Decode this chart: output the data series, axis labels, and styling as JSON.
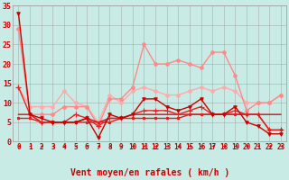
{
  "xlabel": "Vent moyen/en rafales ( km/h )",
  "xlim": [
    -0.5,
    23.5
  ],
  "ylim": [
    0,
    35
  ],
  "yticks": [
    0,
    5,
    10,
    15,
    20,
    25,
    30,
    35
  ],
  "xticks": [
    0,
    1,
    2,
    3,
    4,
    5,
    6,
    7,
    8,
    9,
    10,
    11,
    12,
    13,
    14,
    15,
    16,
    17,
    18,
    19,
    20,
    21,
    22,
    23
  ],
  "bg_color": "#c8ebe6",
  "grid_color": "#999999",
  "lines": [
    {
      "x": [
        0,
        1,
        2,
        3,
        4,
        5,
        6,
        7,
        8,
        9,
        10,
        11,
        12,
        13,
        14,
        15,
        16,
        17,
        18,
        19,
        20,
        21,
        22,
        23
      ],
      "y": [
        33,
        7,
        6,
        5,
        5,
        5,
        6,
        1,
        7,
        6,
        7,
        11,
        11,
        9,
        8,
        9,
        11,
        7,
        7,
        9,
        5,
        4,
        2,
        2
      ],
      "color": "#cc0000",
      "lw": 1.0,
      "marker": "v",
      "ms": 2.5,
      "zorder": 5
    },
    {
      "x": [
        0,
        1,
        2,
        3,
        4,
        5,
        6,
        7,
        8,
        9,
        10,
        11,
        12,
        13,
        14,
        15,
        16,
        17,
        18,
        19,
        20,
        21,
        22,
        23
      ],
      "y": [
        14,
        7,
        5,
        5,
        5,
        7,
        6,
        4,
        6,
        6,
        7,
        8,
        8,
        8,
        7,
        8,
        9,
        7,
        7,
        8,
        7,
        7,
        3,
        3
      ],
      "color": "#ee2222",
      "lw": 1.0,
      "marker": "+",
      "ms": 4.0,
      "zorder": 4
    },
    {
      "x": [
        0,
        1,
        2,
        3,
        4,
        5,
        6,
        7,
        8,
        9,
        10,
        11,
        12,
        13,
        14,
        15,
        16,
        17,
        18,
        19,
        20,
        21,
        22,
        23
      ],
      "y": [
        7,
        7,
        5,
        5,
        5,
        5,
        6,
        5,
        6,
        6,
        7,
        7,
        7,
        7,
        7,
        7,
        7,
        7,
        7,
        7,
        7,
        7,
        7,
        7
      ],
      "color": "#cc1111",
      "lw": 1.0,
      "marker": null,
      "ms": 0,
      "zorder": 3
    },
    {
      "x": [
        0,
        1,
        2,
        3,
        4,
        5,
        6,
        7,
        8,
        9,
        10,
        11,
        12,
        13,
        14,
        15,
        16,
        17,
        18,
        19,
        20,
        21,
        22,
        23
      ],
      "y": [
        6,
        6,
        5,
        5,
        5,
        5,
        5,
        5,
        5,
        6,
        6,
        6,
        6,
        6,
        6,
        7,
        7,
        7,
        7,
        7,
        7,
        7,
        3,
        3
      ],
      "color": "#dd2222",
      "lw": 1.0,
      "marker": "s",
      "ms": 2.0,
      "zorder": 4
    },
    {
      "x": [
        0,
        1,
        2,
        3,
        4,
        5,
        6,
        7,
        8,
        9,
        10,
        11,
        12,
        13,
        14,
        15,
        16,
        17,
        18,
        19,
        20,
        21,
        22,
        23
      ],
      "y": [
        14,
        9,
        9,
        9,
        13,
        10,
        9,
        5,
        12,
        10,
        13,
        14,
        13,
        12,
        12,
        13,
        14,
        13,
        14,
        13,
        10,
        10,
        10,
        12
      ],
      "color": "#ffaaaa",
      "lw": 1.0,
      "marker": "o",
      "ms": 2.5,
      "zorder": 2
    },
    {
      "x": [
        0,
        1,
        2,
        3,
        4,
        5,
        6,
        7,
        8,
        9,
        10,
        11,
        12,
        13,
        14,
        15,
        16,
        17,
        18,
        19,
        20,
        21,
        22,
        23
      ],
      "y": [
        29,
        7,
        7,
        7,
        9,
        9,
        9,
        4,
        11,
        11,
        14,
        25,
        20,
        20,
        21,
        20,
        19,
        23,
        23,
        17,
        8,
        10,
        10,
        12
      ],
      "color": "#ff8888",
      "lw": 1.0,
      "marker": "o",
      "ms": 2.5,
      "zorder": 2
    }
  ],
  "arrow_color": "#cc0000",
  "xlabel_color": "#cc0000",
  "ytick_color": "#cc0000",
  "xtick_color": "#cc0000",
  "tick_fontsize": 5.5,
  "xlabel_fontsize": 7.0
}
